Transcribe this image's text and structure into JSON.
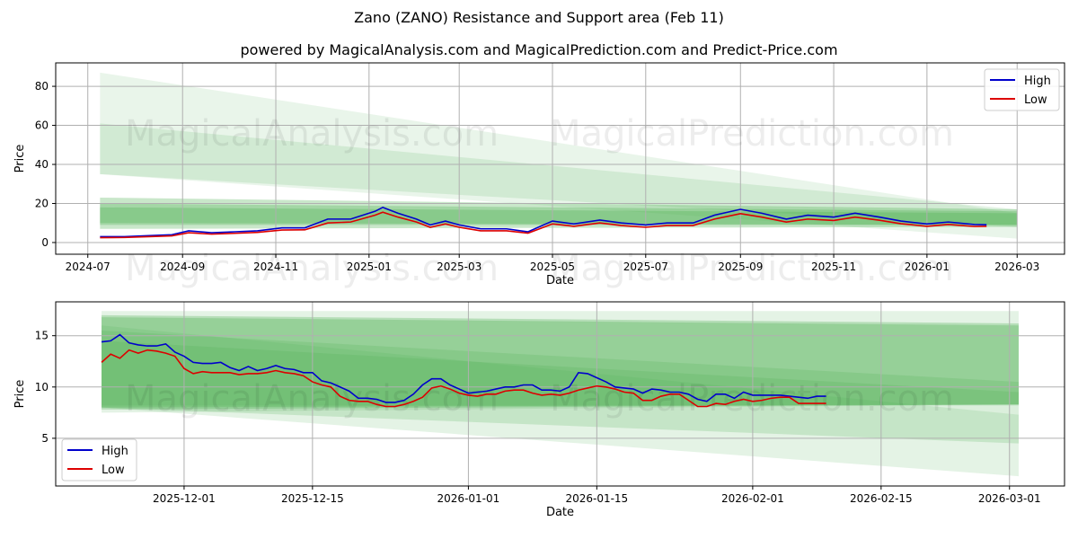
{
  "title": "Zano (ZANO) Resistance and Support area (Feb 11)",
  "subtitle": "powered by MagicalAnalysis.com and MagicalPrediction.com and Predict-Price.com",
  "watermarks": [
    "MagicalAnalysis.com",
    "MagicalPrediction.com"
  ],
  "colors": {
    "high": "#0000cc",
    "low": "#dd0000",
    "band": "#4caf50"
  },
  "chart_data": [
    {
      "type": "line",
      "xlabel": "Date",
      "ylabel": "Price",
      "xlim": [
        "2024-06-10",
        "2026-04-01"
      ],
      "ylim": [
        -6,
        92
      ],
      "xticks": [
        "2024-07",
        "2024-09",
        "2024-11",
        "2025-01",
        "2025-03",
        "2025-05",
        "2025-07",
        "2025-09",
        "2025-11",
        "2026-01",
        "2026-03"
      ],
      "yticks": [
        0,
        20,
        40,
        60,
        80
      ],
      "legend": "top-right",
      "grid": true,
      "bands": [
        {
          "start": "2024-07-09",
          "end": "2026-03-01",
          "from": [
            35,
            87
          ],
          "to": [
            2,
            15
          ],
          "opacity": 0.12
        },
        {
          "start": "2024-07-09",
          "end": "2026-03-01",
          "from": [
            35,
            61
          ],
          "to": [
            8,
            17
          ],
          "opacity": 0.15
        },
        {
          "start": "2024-07-09",
          "end": "2026-03-01",
          "from": [
            7,
            23
          ],
          "to": [
            8,
            17
          ],
          "opacity": 0.3
        },
        {
          "start": "2024-07-09",
          "end": "2026-03-01",
          "from": [
            9,
            20
          ],
          "to": [
            9,
            16
          ],
          "opacity": 0.3
        },
        {
          "start": "2024-07-09",
          "end": "2026-03-01",
          "from": [
            10,
            18
          ],
          "to": [
            9,
            15
          ],
          "opacity": 0.3
        }
      ],
      "x": [
        "2024-07-09",
        "2024-07-25",
        "2024-08-10",
        "2024-08-25",
        "2024-09-05",
        "2024-09-20",
        "2024-10-05",
        "2024-10-20",
        "2024-11-05",
        "2024-11-20",
        "2024-12-05",
        "2024-12-20",
        "2025-01-05",
        "2025-01-10",
        "2025-01-20",
        "2025-02-01",
        "2025-02-10",
        "2025-02-20",
        "2025-03-01",
        "2025-03-15",
        "2025-04-01",
        "2025-04-15",
        "2025-05-01",
        "2025-05-15",
        "2025-06-01",
        "2025-06-15",
        "2025-07-01",
        "2025-07-15",
        "2025-08-01",
        "2025-08-15",
        "2025-09-01",
        "2025-09-15",
        "2025-10-01",
        "2025-10-15",
        "2025-11-01",
        "2025-11-15",
        "2025-12-01",
        "2025-12-15",
        "2026-01-01",
        "2026-01-15",
        "2026-02-01",
        "2026-02-09"
      ],
      "series": [
        {
          "name": "High",
          "values": [
            3,
            3,
            3.5,
            4,
            6,
            5,
            5.5,
            6,
            7.5,
            7.5,
            12,
            12,
            16,
            18,
            15,
            12,
            9,
            11,
            9,
            7,
            7,
            5.5,
            11,
            9.5,
            11.5,
            10,
            9,
            10,
            10,
            14,
            17,
            15,
            12,
            14,
            13,
            15,
            13,
            11,
            9.5,
            10.5,
            9.2,
            9.1
          ]
        },
        {
          "name": "Low",
          "values": [
            2.5,
            2.6,
            3,
            3.4,
            5,
            4.3,
            4.7,
            5.2,
            6.4,
            6.5,
            10,
            10.5,
            14,
            15.5,
            13,
            10.5,
            7.8,
            9.5,
            7.8,
            6,
            6,
            4.8,
            9.5,
            8.3,
            10,
            8.7,
            7.8,
            8.7,
            8.7,
            12,
            14.8,
            13,
            10.5,
            12,
            11.3,
            13,
            11.4,
            9.6,
            8.3,
            9.2,
            8.2,
            8.3
          ]
        }
      ]
    },
    {
      "type": "line",
      "xlabel": "Date",
      "ylabel": "Price",
      "xlim": [
        "2025-11-17",
        "2026-03-07"
      ],
      "ylim": [
        0.35,
        18.3
      ],
      "xticks": [
        "2025-12-01",
        "2025-12-15",
        "2026-01-01",
        "2026-01-15",
        "2026-02-01",
        "2026-02-15",
        "2026-03-01"
      ],
      "yticks": [
        5,
        10,
        15
      ],
      "legend": "bottom-left",
      "grid": true,
      "start": "2025-11-22",
      "bands": [
        {
          "start": "2025-11-22",
          "end": "2026-03-02",
          "from": [
            7.5,
            17.4
          ],
          "to": [
            8.3,
            17.4
          ],
          "opacity": 0.15
        },
        {
          "start": "2025-11-22",
          "end": "2026-03-02",
          "from": [
            7.8,
            17
          ],
          "to": [
            8.3,
            16.2
          ],
          "opacity": 0.3
        },
        {
          "start": "2025-11-22",
          "end": "2026-03-02",
          "from": [
            8,
            16.8
          ],
          "to": [
            8.3,
            16
          ],
          "opacity": 0.3
        },
        {
          "start": "2025-11-22",
          "end": "2026-03-02",
          "from": [
            8,
            16
          ],
          "to": [
            1.3,
            7.3
          ],
          "opacity": 0.15
        },
        {
          "start": "2025-11-22",
          "end": "2026-03-02",
          "from": [
            8,
            15.5
          ],
          "to": [
            4.5,
            10.5
          ],
          "opacity": 0.2
        },
        {
          "start": "2025-11-22",
          "end": "2026-03-02",
          "from": [
            8.2,
            14.5
          ],
          "to": [
            8.2,
            9.5
          ],
          "opacity": 0.2
        }
      ],
      "series": [
        {
          "name": "High",
          "values": [
            14.4,
            14.5,
            15.1,
            14.3,
            14.1,
            14.0,
            14.0,
            14.2,
            13.4,
            13.0,
            12.4,
            12.3,
            12.3,
            12.4,
            11.9,
            11.6,
            12.0,
            11.6,
            11.8,
            12.1,
            11.8,
            11.7,
            11.4,
            11.4,
            10.6,
            10.4,
            10.0,
            9.6,
            8.9,
            8.9,
            8.8,
            8.5,
            8.5,
            8.7,
            9.3,
            10.2,
            10.8,
            10.8,
            10.2,
            9.8,
            9.4,
            9.5,
            9.6,
            9.8,
            10.0,
            10.0,
            10.2,
            10.2,
            9.7,
            9.7,
            9.6,
            10.0,
            11.4,
            11.3,
            10.9,
            10.5,
            10.0,
            9.9,
            9.8,
            9.4,
            9.8,
            9.7,
            9.5,
            9.5,
            9.3,
            8.8,
            8.6,
            9.3,
            9.3,
            8.9,
            9.5,
            9.2,
            9.2,
            9.2,
            9.2,
            9.1,
            9.0,
            8.9,
            9.1,
            9.1
          ]
        },
        {
          "name": "Low",
          "values": [
            12.4,
            13.2,
            12.8,
            13.6,
            13.3,
            13.6,
            13.5,
            13.3,
            13.0,
            11.8,
            11.3,
            11.5,
            11.4,
            11.4,
            11.4,
            11.2,
            11.3,
            11.3,
            11.4,
            11.6,
            11.4,
            11.3,
            11.1,
            10.5,
            10.2,
            10.0,
            9.1,
            8.7,
            8.6,
            8.6,
            8.3,
            8.1,
            8.1,
            8.3,
            8.6,
            9.0,
            9.9,
            10.1,
            9.8,
            9.4,
            9.2,
            9.1,
            9.3,
            9.3,
            9.6,
            9.7,
            9.7,
            9.4,
            9.2,
            9.3,
            9.2,
            9.4,
            9.7,
            9.9,
            10.1,
            10.0,
            9.8,
            9.5,
            9.4,
            8.7,
            8.7,
            9.1,
            9.3,
            9.3,
            8.7,
            8.1,
            8.1,
            8.4,
            8.3,
            8.6,
            8.8,
            8.6,
            8.7,
            8.9,
            9.0,
            9.0,
            8.4,
            8.4,
            8.4,
            8.4
          ]
        }
      ]
    }
  ]
}
